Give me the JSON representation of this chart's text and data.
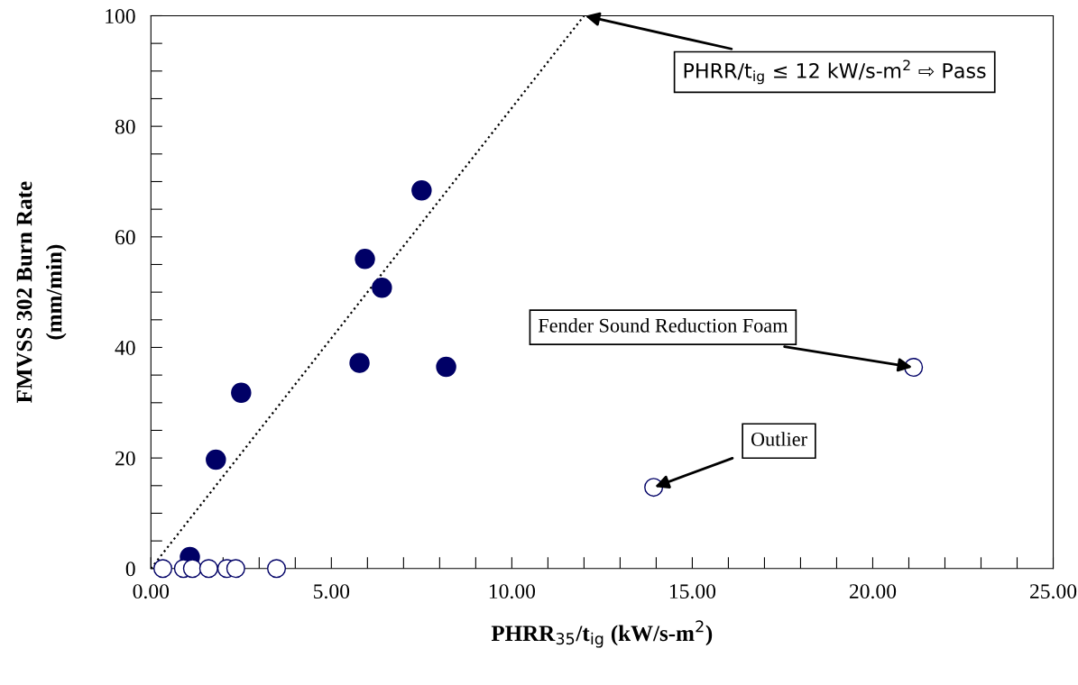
{
  "chart_data": {
    "type": "scatter",
    "xlabel": "PHRR$_{35}$/t$_{ig}$ (kW/s-m$^{2}$)",
    "ylabel": "FMVSS 302 Burn Rate\n(mm/min)",
    "xlim": [
      0,
      25
    ],
    "ylim": [
      0,
      100
    ],
    "xticks": [
      {
        "value": 0,
        "label": "0.00"
      },
      {
        "value": 1,
        "label": null
      },
      {
        "value": 2,
        "label": null
      },
      {
        "value": 3,
        "label": null
      },
      {
        "value": 4,
        "label": null
      },
      {
        "value": 5,
        "label": "5.00"
      },
      {
        "value": 6,
        "label": null
      },
      {
        "value": 7,
        "label": null
      },
      {
        "value": 8,
        "label": null
      },
      {
        "value": 9,
        "label": null
      },
      {
        "value": 10,
        "label": "10.00"
      },
      {
        "value": 11,
        "label": null
      },
      {
        "value": 12,
        "label": null
      },
      {
        "value": 13,
        "label": null
      },
      {
        "value": 14,
        "label": null
      },
      {
        "value": 15,
        "label": "15.00"
      },
      {
        "value": 16,
        "label": null
      },
      {
        "value": 17,
        "label": null
      },
      {
        "value": 18,
        "label": null
      },
      {
        "value": 19,
        "label": null
      },
      {
        "value": 20,
        "label": "20.00"
      },
      {
        "value": 21,
        "label": null
      },
      {
        "value": 22,
        "label": null
      },
      {
        "value": 23,
        "label": null
      },
      {
        "value": 24,
        "label": null
      },
      {
        "value": 25,
        "label": "25.00"
      }
    ],
    "yticks": [
      0,
      {
        "value": 5,
        "label": null
      },
      {
        "value": 10,
        "label": null
      },
      {
        "value": 15,
        "label": null
      },
      20,
      {
        "value": 25,
        "label": null
      },
      {
        "value": 30,
        "label": null
      },
      {
        "value": 35,
        "label": null
      },
      40,
      {
        "value": 45,
        "label": null
      },
      {
        "value": 50,
        "label": null
      },
      {
        "value": 55,
        "label": null
      },
      60,
      {
        "value": 65,
        "label": null
      },
      {
        "value": 70,
        "label": null
      },
      {
        "value": 75,
        "label": null
      },
      80,
      {
        "value": 85,
        "label": null
      },
      {
        "value": 90,
        "label": null
      },
      {
        "value": 95,
        "label": null
      },
      100
    ],
    "grid": false,
    "marker": "circle",
    "series": [
      {
        "type": "line",
        "color": "#000000",
        "x": [
          0,
          12
        ],
        "values": [
          0,
          100
        ],
        "marker": "none",
        "line_style": "dotted"
      },
      {
        "color": "#000066",
        "x": [
          1.08,
          1.8,
          2.5,
          5.78,
          5.93,
          6.4,
          7.5,
          8.18
        ],
        "values": [
          2.1,
          19.7,
          31.8,
          37.2,
          56.0,
          50.8,
          68.4,
          36.5
        ]
      },
      {
        "color": "#000066",
        "x": [
          0.33,
          0.9,
          1.15,
          1.6,
          2.1,
          2.35,
          3.48,
          13.93,
          21.13
        ],
        "values": [
          0,
          0,
          0,
          0,
          0,
          0,
          0,
          14.7,
          36.4
        ]
      }
    ],
    "annotations": [
      {
        "text": "PHRR/t$_{ig}$ ≤ 12 kW/s-m$^{2}$ ⇨ Pass",
        "x": 12,
        "y": 100
      },
      {
        "text": "Fender Sound Reduction Foam",
        "x": 21.13,
        "y": 36.4
      },
      {
        "text": "Outlier",
        "x": 13.93,
        "y": 14.7
      }
    ]
  }
}
